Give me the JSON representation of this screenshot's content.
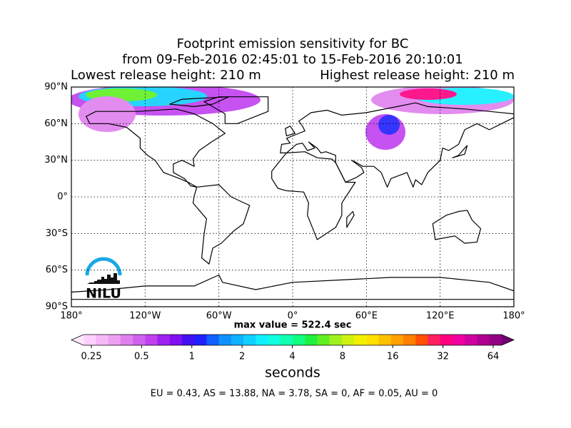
{
  "chart_data": {
    "type": "map",
    "title_lines": [
      "Footprint emission sensitivity for BC",
      "from 09-Feb-2016 02:45:01 to 15-Feb-2016 20:10:01"
    ],
    "subtitle_left": "Lowest release height: 210 m",
    "subtitle_right": "Highest release height: 210 m",
    "xlim": [
      -180,
      180
    ],
    "ylim": [
      -90,
      90
    ],
    "xticks": [
      {
        "value": -180,
        "label": "180°"
      },
      {
        "value": -120,
        "label": "120°W"
      },
      {
        "value": -60,
        "label": "60°W"
      },
      {
        "value": 0,
        "label": "0°"
      },
      {
        "value": 60,
        "label": "60°E"
      },
      {
        "value": 120,
        "label": "120°E"
      },
      {
        "value": 180,
        "label": "180°"
      }
    ],
    "yticks": [
      {
        "value": 90,
        "label": "90°N"
      },
      {
        "value": 60,
        "label": "60°N"
      },
      {
        "value": 30,
        "label": "30°N"
      },
      {
        "value": 0,
        "label": "0°"
      },
      {
        "value": -30,
        "label": "30°S"
      },
      {
        "value": -60,
        "label": "60°S"
      },
      {
        "value": -90,
        "label": "90°S"
      }
    ],
    "grid": true,
    "logo": "NILU",
    "max_value_text": "max value = 522.4 sec",
    "colorbar": {
      "scale": "log",
      "lim": [
        0.25,
        64
      ],
      "ticks": [
        0.25,
        0.5,
        1,
        2,
        4,
        8,
        16,
        32,
        64
      ],
      "label": "seconds",
      "colors": [
        "#ffe8ff",
        "#ffd0ff",
        "#f6b8f6",
        "#eea0f0",
        "#e080ee",
        "#d060ee",
        "#c040f0",
        "#a020f0",
        "#8010f0",
        "#4010f0",
        "#2020ff",
        "#1060ff",
        "#1090ff",
        "#10b0ff",
        "#10d0ff",
        "#10f0ff",
        "#10ffe0",
        "#10ffb0",
        "#10ff80",
        "#20f040",
        "#60f020",
        "#a0f020",
        "#d0f010",
        "#f0f000",
        "#ffe000",
        "#ffc000",
        "#ffa000",
        "#ff8000",
        "#ff5000",
        "#ff2060",
        "#ff0080",
        "#f000a0",
        "#d000a0",
        "#b00090",
        "#900080",
        "#700070"
      ]
    },
    "stats_text": "EU = 0.43,  AS = 13.88,  NA = 3.78,  SA = 0,  AF = 0.05,  AU = 0",
    "stats_color": "#0000ff"
  }
}
